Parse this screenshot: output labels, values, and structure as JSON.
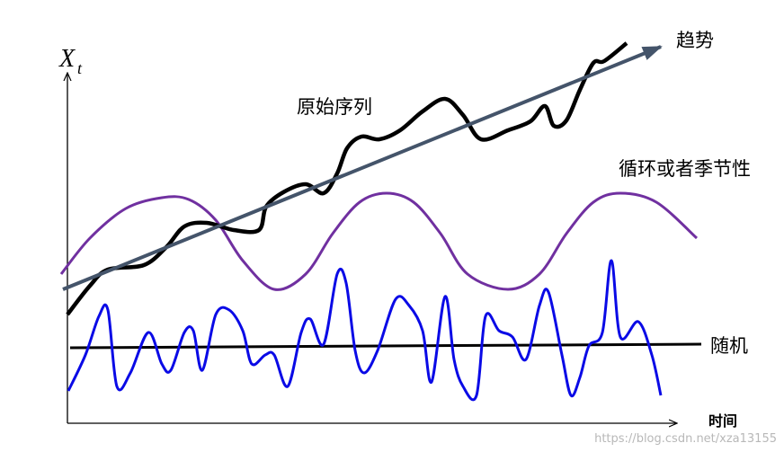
{
  "axes": {
    "y_label": "X",
    "y_label_subscript": "t",
    "x_label": "时间"
  },
  "labels": {
    "original": "原始序列",
    "trend": "趋势",
    "seasonal": "循环或者季节性",
    "random": "随机"
  },
  "watermark": "https://blog.csdn.net/xza13155"
}
